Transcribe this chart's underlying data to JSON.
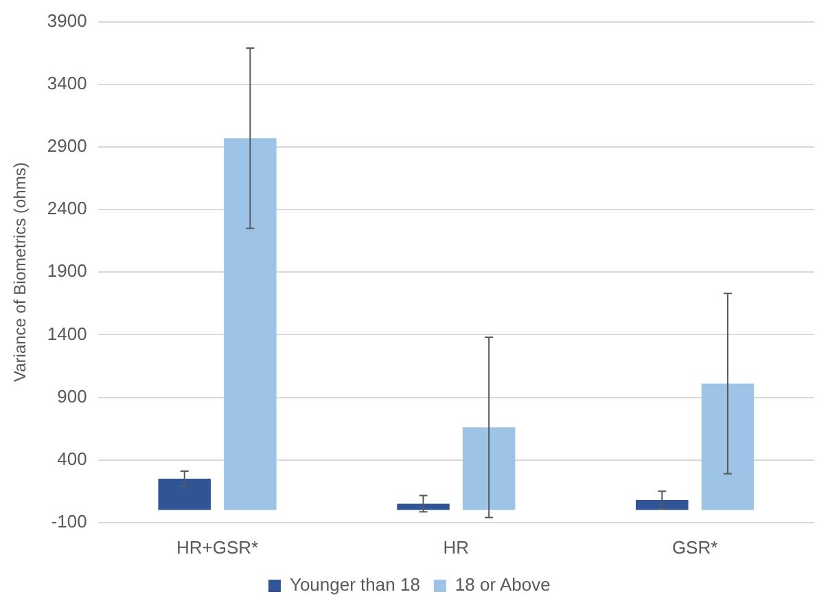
{
  "chart_data": {
    "type": "bar",
    "ylabel": "Variance of Biometrics (ohms)",
    "categories": [
      "HR+GSR*",
      "HR",
      "GSR*"
    ],
    "series": [
      {
        "name": "Younger than 18",
        "color": "#2f5597",
        "values": [
          250,
          50,
          80
        ],
        "errors": [
          60,
          65,
          70
        ]
      },
      {
        "name": "18 or Above",
        "color": "#9dc3e6",
        "values": [
          2970,
          660,
          1010
        ],
        "errors": [
          720,
          720,
          720
        ]
      }
    ],
    "ylim": [
      -100,
      3900
    ],
    "yticks": [
      -100,
      400,
      900,
      1400,
      1900,
      2400,
      2900,
      3400,
      3900
    ],
    "grid": "y",
    "legend": "bottom"
  }
}
